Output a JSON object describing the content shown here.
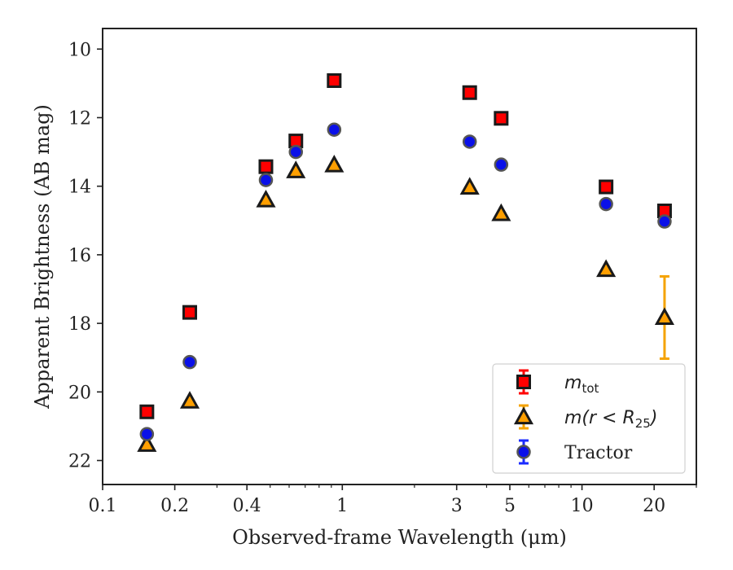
{
  "chart_data": {
    "type": "scatter",
    "title": "",
    "xlabel": "Observed-frame Wavelength (μm)",
    "ylabel": "Apparent Brightness (AB mag)",
    "x_scale": "log",
    "xlim": [
      0.1,
      30
    ],
    "ylim": [
      22.7,
      9.4
    ],
    "y_inverted": true,
    "x_ticks": [
      {
        "value": 0.1,
        "label": "0.1"
      },
      {
        "value": 0.2,
        "label": "0.2"
      },
      {
        "value": 0.4,
        "label": "0.4"
      },
      {
        "value": 1,
        "label": "1"
      },
      {
        "value": 3,
        "label": "3"
      },
      {
        "value": 5,
        "label": "5"
      },
      {
        "value": 10,
        "label": "10"
      },
      {
        "value": 20,
        "label": "20"
      }
    ],
    "y_ticks": [
      {
        "value": 10,
        "label": "10"
      },
      {
        "value": 12,
        "label": "12"
      },
      {
        "value": 14,
        "label": "14"
      },
      {
        "value": 16,
        "label": "16"
      },
      {
        "value": 18,
        "label": "18"
      },
      {
        "value": 20,
        "label": "20"
      },
      {
        "value": 22,
        "label": "22"
      }
    ],
    "grid": false,
    "legend_position": "lower-right",
    "series": [
      {
        "name": "m_tot",
        "legend_label": {
          "base": "m",
          "sub": "tot",
          "suffix": ""
        },
        "marker": "square",
        "color": "#ff0000",
        "edge_color": "#1a1a1a",
        "errorbar_color": "#ff0000",
        "points": [
          {
            "x": 0.153,
            "y": 20.58,
            "err": 0.0
          },
          {
            "x": 0.231,
            "y": 17.68,
            "err": 0.0
          },
          {
            "x": 0.48,
            "y": 13.43,
            "err": 0.0
          },
          {
            "x": 0.64,
            "y": 12.68,
            "err": 0.0
          },
          {
            "x": 0.925,
            "y": 10.92,
            "err": 0.0
          },
          {
            "x": 3.4,
            "y": 11.27,
            "err": 0.0
          },
          {
            "x": 4.6,
            "y": 12.02,
            "err": 0.0
          },
          {
            "x": 12.6,
            "y": 14.02,
            "err": 0.0
          },
          {
            "x": 22.1,
            "y": 14.72,
            "err": 0.0
          }
        ]
      },
      {
        "name": "m(r < R25)",
        "legend_label": {
          "base": "m(r < R",
          "sub": "25",
          "suffix": ")"
        },
        "marker": "triangle",
        "color": "#ff9f00",
        "edge_color": "#1a1a1a",
        "errorbar_color": "#f5a300",
        "points": [
          {
            "x": 0.153,
            "y": 21.53,
            "err": 0.0
          },
          {
            "x": 0.231,
            "y": 20.27,
            "err": 0.0
          },
          {
            "x": 0.48,
            "y": 14.4,
            "err": 0.0
          },
          {
            "x": 0.64,
            "y": 13.55,
            "err": 0.0
          },
          {
            "x": 0.925,
            "y": 13.38,
            "err": 0.0
          },
          {
            "x": 3.4,
            "y": 14.03,
            "err": 0.0
          },
          {
            "x": 4.6,
            "y": 14.8,
            "err": 0.0
          },
          {
            "x": 12.6,
            "y": 16.43,
            "err": 0.0
          },
          {
            "x": 22.1,
            "y": 17.83,
            "err": 1.2
          }
        ]
      },
      {
        "name": "Tractor",
        "legend_label": {
          "base": "Tractor",
          "sub": "",
          "suffix": ""
        },
        "marker": "circle",
        "color": "#0a10e8",
        "edge_color": "#555555",
        "errorbar_color": "#1a2bff",
        "points": [
          {
            "x": 0.153,
            "y": 21.23,
            "err": 0.0
          },
          {
            "x": 0.231,
            "y": 19.13,
            "err": 0.0
          },
          {
            "x": 0.48,
            "y": 13.82,
            "err": 0.0
          },
          {
            "x": 0.64,
            "y": 13.0,
            "err": 0.0
          },
          {
            "x": 0.925,
            "y": 12.35,
            "err": 0.0
          },
          {
            "x": 3.4,
            "y": 12.7,
            "err": 0.0
          },
          {
            "x": 4.6,
            "y": 13.37,
            "err": 0.0
          },
          {
            "x": 12.6,
            "y": 14.52,
            "err": 0.0
          },
          {
            "x": 22.1,
            "y": 15.03,
            "err": 0.0
          }
        ]
      }
    ]
  }
}
